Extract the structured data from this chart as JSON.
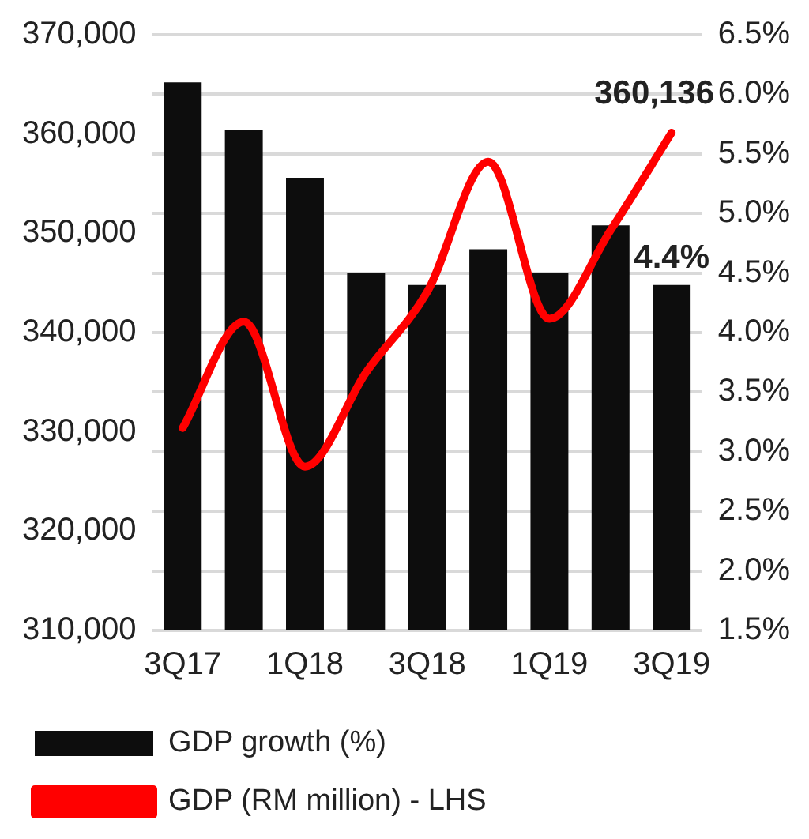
{
  "chart_data": {
    "type": "bar",
    "categories": [
      "3Q17",
      null,
      "1Q18",
      null,
      "3Q18",
      null,
      "1Q19",
      null,
      "3Q19"
    ],
    "series": [
      {
        "name": "GDP growth (%)",
        "axis": "y2",
        "color": "#0d0d0d",
        "values": [
          6.1,
          5.7,
          5.3,
          4.5,
          4.4,
          4.7,
          4.5,
          4.9,
          4.4
        ],
        "value_labels": [
          null,
          null,
          null,
          null,
          null,
          null,
          null,
          null,
          "4.4%"
        ]
      },
      {
        "name": "GDP (RM million) - LHS",
        "type": "line",
        "axis": "y",
        "color": "#ff0000",
        "values": [
          330400,
          341100,
          326500,
          336000,
          344100,
          357200,
          341400,
          350300,
          360136
        ],
        "value_labels": [
          null,
          null,
          null,
          null,
          null,
          null,
          null,
          null,
          "360,136"
        ]
      }
    ],
    "ylim": [
      310000,
      370000
    ],
    "yticks": [
      {
        "value": 310000,
        "label": "310,000"
      },
      {
        "value": 320000,
        "label": "320,000"
      },
      {
        "value": 330000,
        "label": "330,000"
      },
      {
        "value": 340000,
        "label": "340,000"
      },
      {
        "value": 350000,
        "label": "350,000"
      },
      {
        "value": 360000,
        "label": "360,000"
      },
      {
        "value": 370000,
        "label": "370,000"
      }
    ],
    "y2lim": [
      1.5,
      6.5
    ],
    "y2ticks": [
      {
        "value": 1.5,
        "label": "1.5%"
      },
      {
        "value": 2,
        "label": "2.0%"
      },
      {
        "value": 2.5,
        "label": "2.5%"
      },
      {
        "value": 3,
        "label": "3.0%"
      },
      {
        "value": 3.5,
        "label": "3.5%"
      },
      {
        "value": 4,
        "label": "4.0%"
      },
      {
        "value": 4.5,
        "label": "4.5%"
      },
      {
        "value": 5,
        "label": "5.0%"
      },
      {
        "value": 5.5,
        "label": "5.5%"
      },
      {
        "value": 6,
        "label": "6.0%"
      },
      {
        "value": 6.5,
        "label": "6.5%"
      }
    ],
    "grid": "y2",
    "legend": "bottom",
    "marker": "none",
    "line_style": "solid"
  }
}
